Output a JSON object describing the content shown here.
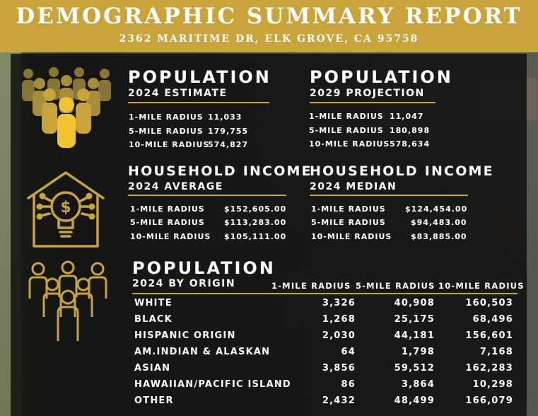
{
  "header": {
    "title": "DEMOGRAPHIC SUMMARY REPORT",
    "address": "2362 MARITIME DR, ELK GROVE, CA 95758"
  },
  "colors": {
    "gold": "#c9a43a",
    "panel": "#0e0e0e",
    "text": "#ffffff"
  },
  "icons": {
    "population": "people-crowd-icon",
    "income": "house-lightbulb-dollar-icon",
    "origin": "people-group-icon"
  },
  "pop_2024": {
    "title": "POPULATION",
    "subtitle": "2024 ESTIMATE",
    "rows": [
      {
        "label": "1-MILE RADIUS",
        "value": "11,033"
      },
      {
        "label": "5-MILE RADIUS",
        "value": "179,755"
      },
      {
        "label": "10-MILE RADIUS",
        "value": "574,827"
      }
    ]
  },
  "pop_2029": {
    "title": "POPULATION",
    "subtitle": "2029 PROJECTION",
    "rows": [
      {
        "label": "1-MILE RADIUS",
        "value": "11,047"
      },
      {
        "label": "5-MILE RADIUS",
        "value": "180,898"
      },
      {
        "label": "10-MILE RADIUS",
        "value": "578,634"
      }
    ]
  },
  "hh_avg": {
    "title": "HOUSEHOLD INCOME",
    "subtitle": "2024 AVERAGE",
    "rows": [
      {
        "label": "1-MILE RADIUS",
        "value": "$152,605.00"
      },
      {
        "label": "5-MILE RADIUS",
        "value": "$113,283.00"
      },
      {
        "label": "10-MILE RADIUS",
        "value": "$105,111.00"
      }
    ]
  },
  "hh_median": {
    "title": "HOUSEHOLD INCOME",
    "subtitle": "2024 MEDIAN",
    "rows": [
      {
        "label": "1-MILE RADIUS",
        "value": "$124,454.00"
      },
      {
        "label": "5-MILE RADIUS",
        "value": "$94,483.00"
      },
      {
        "label": "10-MILE RADIUS",
        "value": "$83,885.00"
      }
    ]
  },
  "origin": {
    "title": "POPULATION",
    "subtitle": "2024 BY ORIGIN",
    "columns": [
      "1-MILE RADIUS",
      "5-MILE RADIUS",
      "10-MILE RADIUS"
    ],
    "rows": [
      {
        "label": "WHITE",
        "values": [
          "3,326",
          "40,908",
          "160,503"
        ]
      },
      {
        "label": "BLACK",
        "values": [
          "1,268",
          "25,175",
          "68,496"
        ]
      },
      {
        "label": "HISPANIC ORIGIN",
        "values": [
          "2,030",
          "44,181",
          "156,601"
        ]
      },
      {
        "label": "AM.INDIAN & ALASKAN",
        "values": [
          "64",
          "1,798",
          "7,168"
        ]
      },
      {
        "label": "ASIAN",
        "values": [
          "3,856",
          "59,512",
          "162,283"
        ]
      },
      {
        "label": "HAWAIIAN/PACIFIC ISLAND",
        "values": [
          "86",
          "3,864",
          "10,298"
        ]
      },
      {
        "label": "OTHER",
        "values": [
          "2,432",
          "48,499",
          "166,079"
        ]
      }
    ]
  }
}
